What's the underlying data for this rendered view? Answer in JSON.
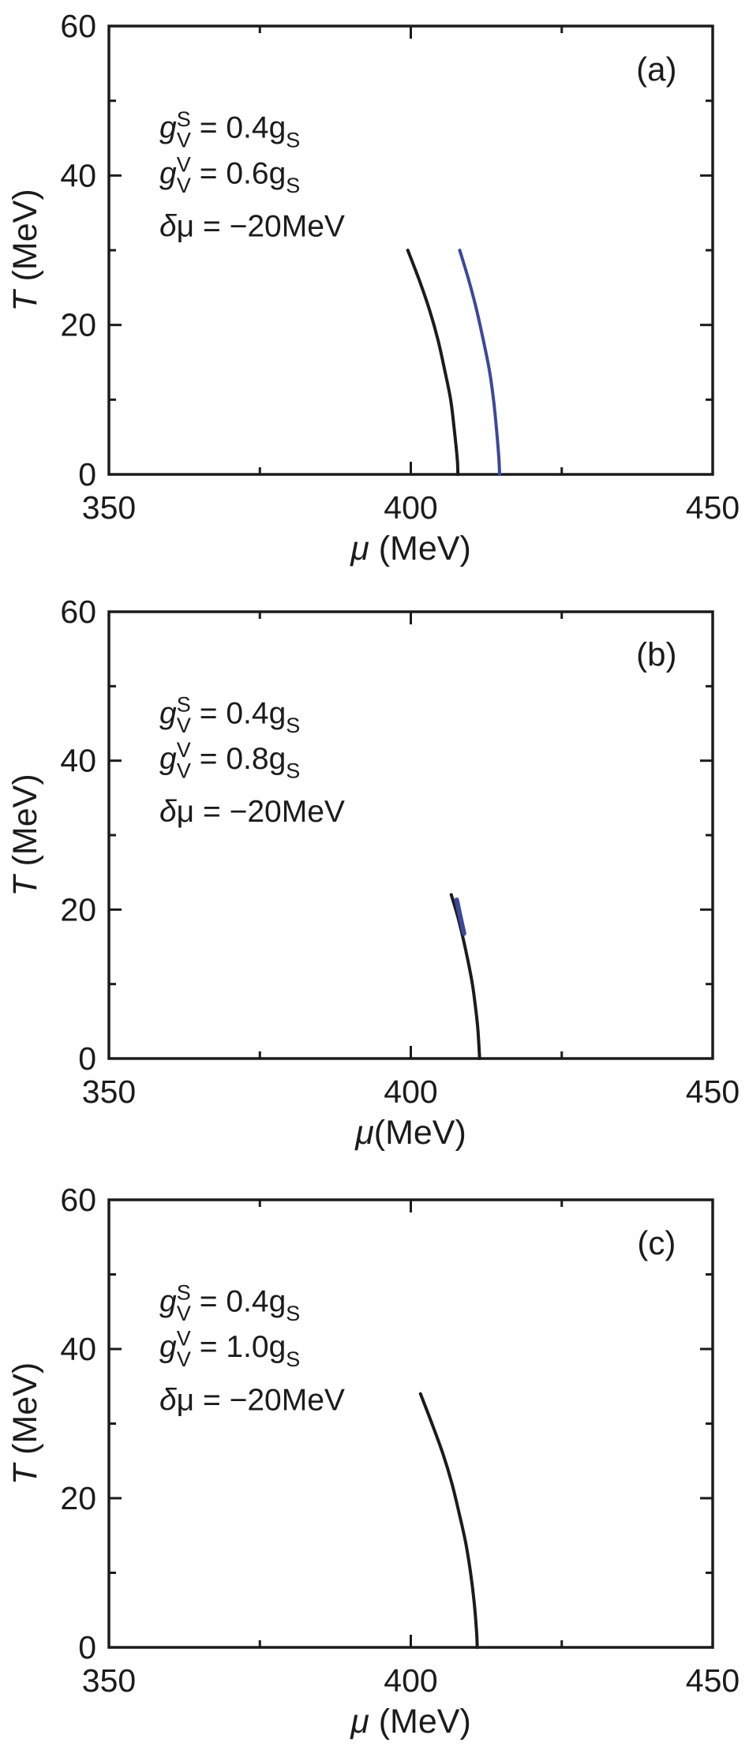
{
  "colors": {
    "background": "#ffffff",
    "axis": "#1b1b1b",
    "text": "#1b1b1b",
    "black_line": "#1b1b1b",
    "blue_line": "#3c4899"
  },
  "shared": {
    "ylabel_text": "T (MeV)",
    "ylabel_tokens": [
      {
        "t": "T",
        "i": 1
      },
      {
        "t": " (MeV)"
      }
    ]
  },
  "chart_data": [
    {
      "type": "line",
      "panel_label": "(a)",
      "xlabel_text": "μ (MeV)",
      "xlabel_tokens": [
        {
          "t": "μ",
          "i": 1
        },
        {
          "t": " (MeV)"
        }
      ],
      "xlim": [
        350,
        450
      ],
      "ylim": [
        0,
        60
      ],
      "x_major_ticks": [
        350,
        400,
        450
      ],
      "x_minor_ticks": [
        375,
        425
      ],
      "y_major_ticks": [
        0,
        20,
        40,
        60
      ],
      "y_minor_ticks": [
        10,
        30,
        50
      ],
      "x_tick_labels": [
        "350",
        "400",
        "450"
      ],
      "y_tick_labels": [
        "0",
        "20",
        "40",
        "60"
      ],
      "grid": false,
      "legend": null,
      "annotations": [
        {
          "tokens": [
            {
              "t": "g",
              "i": 1
            },
            {
              "sup": "S",
              "sub": "V"
            },
            {
              "t": " = 0.4g"
            },
            {
              "sub": "S"
            }
          ]
        },
        {
          "tokens": [
            {
              "t": "g",
              "i": 1
            },
            {
              "sup": "V",
              "sub": "V"
            },
            {
              "t": " = 0.6g"
            },
            {
              "sub": "S"
            }
          ]
        },
        {
          "tokens": [
            {
              "t": "δ",
              "i": 1
            },
            {
              "t": "μ = −20MeV"
            }
          ]
        }
      ],
      "series": [
        {
          "name": "black-curve",
          "color_key": "black_line",
          "stroke_width": 4,
          "points": [
            [
              399.5,
              30
            ],
            [
              401.4,
              26
            ],
            [
              403.1,
              22
            ],
            [
              404.5,
              18
            ],
            [
              405.6,
              14
            ],
            [
              406.6,
              10
            ],
            [
              407.2,
              6
            ],
            [
              407.7,
              2
            ],
            [
              407.8,
              0
            ]
          ]
        },
        {
          "name": "blue-curve",
          "color_key": "blue_line",
          "stroke_width": 4,
          "points": [
            [
              408.1,
              30
            ],
            [
              409.6,
              26
            ],
            [
              410.9,
              22
            ],
            [
              412.0,
              18
            ],
            [
              413.0,
              14
            ],
            [
              413.7,
              10
            ],
            [
              414.2,
              6
            ],
            [
              414.6,
              2
            ],
            [
              414.7,
              0
            ]
          ]
        }
      ]
    },
    {
      "type": "line",
      "panel_label": "(b)",
      "xlabel_text": "μ(MeV)",
      "xlabel_tokens": [
        {
          "t": "μ",
          "i": 1
        },
        {
          "t": "(MeV)"
        }
      ],
      "xlim": [
        350,
        450
      ],
      "ylim": [
        0,
        60
      ],
      "x_major_ticks": [
        350,
        400,
        450
      ],
      "x_minor_ticks": [
        375,
        425
      ],
      "y_major_ticks": [
        0,
        20,
        40,
        60
      ],
      "y_minor_ticks": [
        10,
        30,
        50
      ],
      "x_tick_labels": [
        "350",
        "400",
        "450"
      ],
      "y_tick_labels": [
        "0",
        "20",
        "40",
        "60"
      ],
      "grid": false,
      "legend": null,
      "annotations": [
        {
          "tokens": [
            {
              "t": "g",
              "i": 1
            },
            {
              "sup": "S",
              "sub": "V"
            },
            {
              "t": " = 0.4g"
            },
            {
              "sub": "S"
            }
          ]
        },
        {
          "tokens": [
            {
              "t": "g",
              "i": 1
            },
            {
              "sup": "V",
              "sub": "V"
            },
            {
              "t": " = 0.8g"
            },
            {
              "sub": "S"
            }
          ]
        },
        {
          "tokens": [
            {
              "t": "δ",
              "i": 1
            },
            {
              "t": "μ = −20MeV"
            }
          ]
        }
      ],
      "series": [
        {
          "name": "black-curve",
          "color_key": "black_line",
          "stroke_width": 4,
          "points": [
            [
              406.7,
              22
            ],
            [
              407.8,
              19
            ],
            [
              408.7,
              16
            ],
            [
              409.5,
              13
            ],
            [
              410.2,
              10
            ],
            [
              410.7,
              7
            ],
            [
              411.1,
              4
            ],
            [
              411.4,
              0
            ]
          ]
        },
        {
          "name": "blue-curve",
          "color_key": "blue_line",
          "stroke_width": 6,
          "points": [
            [
              407.6,
              21.3
            ],
            [
              408.2,
              19
            ],
            [
              408.8,
              16.8
            ]
          ]
        }
      ]
    },
    {
      "type": "line",
      "panel_label": "(c)",
      "xlabel_text": "μ (MeV)",
      "xlabel_tokens": [
        {
          "t": "μ",
          "i": 1
        },
        {
          "t": " (MeV)"
        }
      ],
      "xlim": [
        350,
        450
      ],
      "ylim": [
        0,
        60
      ],
      "x_major_ticks": [
        350,
        400,
        450
      ],
      "x_minor_ticks": [
        375,
        425
      ],
      "y_major_ticks": [
        0,
        20,
        40,
        60
      ],
      "y_minor_ticks": [
        10,
        30,
        50
      ],
      "x_tick_labels": [
        "350",
        "400",
        "450"
      ],
      "y_tick_labels": [
        "0",
        "20",
        "40",
        "60"
      ],
      "grid": false,
      "legend": null,
      "annotations": [
        {
          "tokens": [
            {
              "t": "g",
              "i": 1
            },
            {
              "sup": "S",
              "sub": "V"
            },
            {
              "t": " = 0.4g"
            },
            {
              "sub": "S"
            }
          ]
        },
        {
          "tokens": [
            {
              "t": "g",
              "i": 1
            },
            {
              "sup": "V",
              "sub": "V"
            },
            {
              "t": " = 1.0g"
            },
            {
              "sub": "S"
            }
          ]
        },
        {
          "tokens": [
            {
              "t": "δ",
              "i": 1
            },
            {
              "t": "μ = −20MeV"
            }
          ]
        }
      ],
      "series": [
        {
          "name": "black-curve",
          "color_key": "black_line",
          "stroke_width": 4,
          "points": [
            [
              401.6,
              34
            ],
            [
              403.5,
              30
            ],
            [
              405.3,
              26
            ],
            [
              406.8,
              22
            ],
            [
              408.0,
              18
            ],
            [
              409.1,
              14
            ],
            [
              409.9,
              10
            ],
            [
              410.5,
              6
            ],
            [
              410.9,
              2
            ],
            [
              411.0,
              0
            ]
          ]
        }
      ]
    }
  ]
}
